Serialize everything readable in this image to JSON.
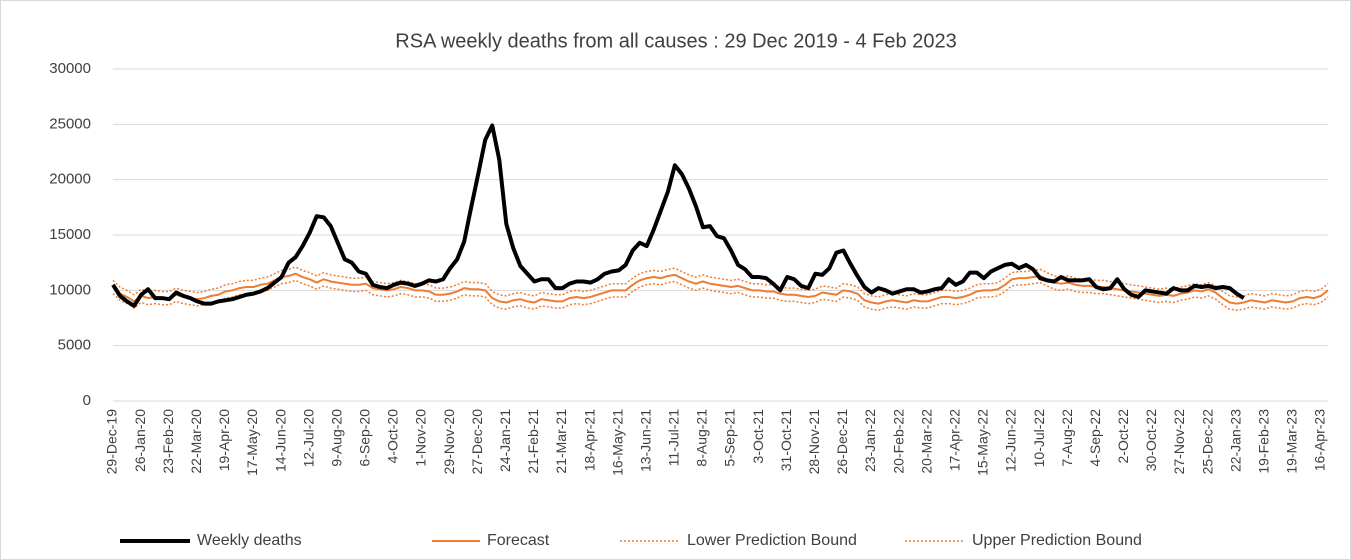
{
  "chart_data": {
    "type": "line",
    "title": "RSA weekly deaths from all causes : 29 Dec 2019 - 4 Feb 2023",
    "categories": [
      "29-Dec-19",
      null,
      null,
      null,
      "26-Jan-20",
      null,
      null,
      null,
      "23-Feb-20",
      null,
      null,
      null,
      "22-Mar-20",
      null,
      null,
      null,
      "19-Apr-20",
      null,
      null,
      null,
      "17-May-20",
      null,
      null,
      null,
      "14-Jun-20",
      null,
      null,
      null,
      "12-Jul-20",
      null,
      null,
      null,
      "9-Aug-20",
      null,
      null,
      null,
      "6-Sep-20",
      null,
      null,
      null,
      "4-Oct-20",
      null,
      null,
      null,
      "1-Nov-20",
      null,
      null,
      null,
      "29-Nov-20",
      null,
      null,
      null,
      "27-Dec-20",
      null,
      null,
      null,
      "24-Jan-21",
      null,
      null,
      null,
      "21-Feb-21",
      null,
      null,
      null,
      "21-Mar-21",
      null,
      null,
      null,
      "18-Apr-21",
      null,
      null,
      null,
      "16-May-21",
      null,
      null,
      null,
      "13-Jun-21",
      null,
      null,
      null,
      "11-Jul-21",
      null,
      null,
      null,
      "8-Aug-21",
      null,
      null,
      null,
      "5-Sep-21",
      null,
      null,
      null,
      "3-Oct-21",
      null,
      null,
      null,
      "31-Oct-21",
      null,
      null,
      null,
      "28-Nov-21",
      null,
      null,
      null,
      "26-Dec-21",
      null,
      null,
      null,
      "23-Jan-22",
      null,
      null,
      null,
      "20-Feb-22",
      null,
      null,
      null,
      "20-Mar-22",
      null,
      null,
      null,
      "17-Apr-22",
      null,
      null,
      null,
      "15-May-22",
      null,
      null,
      null,
      "12-Jun-22",
      null,
      null,
      null,
      "10-Jul-22",
      null,
      null,
      null,
      "7-Aug-22",
      null,
      null,
      null,
      "4-Sep-22",
      null,
      null,
      null,
      "2-Oct-22",
      null,
      null,
      null,
      "30-Oct-22",
      null,
      null,
      null,
      "27-Nov-22",
      null,
      null,
      null,
      "25-Dec-22",
      null,
      null,
      null,
      "22-Jan-23",
      null,
      null,
      null,
      "19-Feb-23",
      null,
      null,
      null,
      "19-Mar-23",
      null,
      null,
      null,
      "16-Apr-23",
      null
    ],
    "series": [
      {
        "name": "Weekly deaths",
        "color": "#000000",
        "width": 4,
        "style": "solid",
        "values": [
          10500,
          9500,
          9000,
          8600,
          9600,
          10100,
          9300,
          9300,
          9200,
          9800,
          9500,
          9300,
          9000,
          8800,
          8800,
          9000,
          9100,
          9200,
          9400,
          9600,
          9700,
          9900,
          10200,
          10700,
          11200,
          12500,
          13000,
          14000,
          15200,
          16700,
          16600,
          15800,
          14300,
          12800,
          12500,
          11700,
          11500,
          10500,
          10300,
          10200,
          10500,
          10700,
          10600,
          10400,
          10600,
          10900,
          10800,
          11000,
          12000,
          12800,
          14400,
          17500,
          20500,
          23600,
          24900,
          21800,
          16000,
          13800,
          12200,
          11500,
          10800,
          11000,
          11000,
          10200,
          10200,
          10600,
          10800,
          10800,
          10700,
          11000,
          11500,
          11700,
          11800,
          12300,
          13600,
          14300,
          14000,
          15500,
          17200,
          18900,
          21300,
          20500,
          19200,
          17600,
          15700,
          15800,
          14900,
          14700,
          13600,
          12300,
          11900,
          11200,
          11200,
          11100,
          10600,
          10000,
          11200,
          11000,
          10400,
          10200,
          11500,
          11400,
          12000,
          13400,
          13600,
          12400,
          11300,
          10300,
          9800,
          10200,
          10000,
          9700,
          9900,
          10100,
          10100,
          9800,
          9900,
          10100,
          10200,
          11000,
          10500,
          10800,
          11600,
          11600,
          11100,
          11700,
          12000,
          12300,
          12400,
          12000,
          12300,
          11900,
          11100,
          10900,
          10800,
          11200,
          10900,
          10900,
          10900,
          11000,
          10300,
          10100,
          10200,
          11000,
          10100,
          9600,
          9400,
          10000,
          9900,
          9800,
          9700,
          10200,
          10000,
          10000,
          10400,
          10300,
          10400,
          10200,
          10300,
          10200,
          9700,
          9300,
          null,
          null,
          null,
          null,
          null,
          null,
          null,
          null,
          null,
          null,
          null,
          null
        ]
      },
      {
        "name": "Forecast",
        "color": "#ED7D31",
        "width": 2,
        "style": "solid",
        "values": [
          10300,
          9700,
          9400,
          9000,
          9500,
          9300,
          9400,
          9300,
          9300,
          9600,
          9400,
          9300,
          9200,
          9300,
          9500,
          9600,
          9900,
          10000,
          10200,
          10300,
          10300,
          10500,
          10600,
          10900,
          11200,
          11300,
          11500,
          11200,
          11000,
          10700,
          11000,
          10800,
          10700,
          10600,
          10500,
          10500,
          10600,
          10200,
          10100,
          10000,
          10100,
          10300,
          10200,
          10000,
          10000,
          9900,
          9600,
          9600,
          9700,
          9900,
          10200,
          10100,
          10100,
          10000,
          9300,
          9000,
          8900,
          9100,
          9200,
          9000,
          8900,
          9200,
          9100,
          9000,
          9000,
          9300,
          9400,
          9300,
          9400,
          9600,
          9800,
          10000,
          10000,
          10000,
          10500,
          10900,
          11100,
          11200,
          11100,
          11300,
          11400,
          11100,
          10800,
          10600,
          10800,
          10600,
          10500,
          10400,
          10300,
          10400,
          10200,
          10000,
          10000,
          9900,
          9900,
          9700,
          9600,
          9600,
          9500,
          9400,
          9500,
          9800,
          9700,
          9600,
          10000,
          9900,
          9700,
          9100,
          8900,
          8800,
          9000,
          9100,
          9000,
          8900,
          9100,
          9000,
          9000,
          9200,
          9400,
          9400,
          9300,
          9400,
          9600,
          9900,
          10000,
          10000,
          10100,
          10500,
          11000,
          11100,
          11100,
          11200,
          11300,
          11000,
          10700,
          10600,
          10700,
          10500,
          10400,
          10400,
          10300,
          10300,
          10200,
          10100,
          10000,
          9900,
          9800,
          9700,
          9600,
          9500,
          9600,
          9500,
          9700,
          9800,
          10000,
          9900,
          10100,
          9800,
          9300,
          8900,
          8800,
          8900,
          9100,
          9000,
          8900,
          9100,
          9000,
          8900,
          9000,
          9300,
          9400,
          9300,
          9500,
          10000
        ]
      },
      {
        "name": "Lower Prediction Bound",
        "color": "#ED7D31",
        "width": 1.5,
        "style": "dotted",
        "values": [
          9700,
          9100,
          8800,
          8400,
          8900,
          8700,
          8800,
          8700,
          8700,
          9000,
          8800,
          8700,
          8600,
          8700,
          8900,
          9000,
          9300,
          9400,
          9600,
          9700,
          9700,
          9900,
          10000,
          10300,
          10600,
          10700,
          10900,
          10600,
          10400,
          10100,
          10400,
          10200,
          10100,
          10000,
          9900,
          9900,
          10000,
          9600,
          9500,
          9400,
          9500,
          9700,
          9600,
          9400,
          9400,
          9300,
          9000,
          9000,
          9100,
          9300,
          9600,
          9500,
          9500,
          9400,
          8700,
          8400,
          8300,
          8500,
          8600,
          8400,
          8300,
          8600,
          8500,
          8400,
          8400,
          8700,
          8800,
          8700,
          8800,
          9000,
          9200,
          9400,
          9400,
          9400,
          9900,
          10300,
          10500,
          10600,
          10500,
          10700,
          10800,
          10500,
          10200,
          10000,
          10200,
          10000,
          9900,
          9800,
          9700,
          9800,
          9600,
          9400,
          9400,
          9300,
          9300,
          9100,
          9000,
          9000,
          8900,
          8800,
          8900,
          9200,
          9100,
          9000,
          9400,
          9300,
          9100,
          8500,
          8300,
          8200,
          8400,
          8500,
          8400,
          8300,
          8500,
          8400,
          8400,
          8600,
          8800,
          8800,
          8700,
          8800,
          9000,
          9300,
          9400,
          9400,
          9500,
          9900,
          10400,
          10500,
          10500,
          10600,
          10700,
          10400,
          10100,
          10000,
          10100,
          9900,
          9800,
          9800,
          9700,
          9700,
          9600,
          9500,
          9400,
          9300,
          9200,
          9100,
          9000,
          8900,
          9000,
          8900,
          9100,
          9200,
          9400,
          9300,
          9500,
          9200,
          8700,
          8300,
          8200,
          8300,
          8500,
          8400,
          8300,
          8500,
          8400,
          8300,
          8400,
          8700,
          8800,
          8700,
          8900,
          9400
        ]
      },
      {
        "name": "Upper Prediction Bound",
        "color": "#ED7D31",
        "width": 1.5,
        "style": "dotted",
        "values": [
          10900,
          10300,
          10000,
          9600,
          10100,
          9900,
          10000,
          9900,
          9900,
          10200,
          10000,
          9900,
          9800,
          9900,
          10100,
          10200,
          10500,
          10600,
          10800,
          10900,
          10900,
          11100,
          11200,
          11500,
          11800,
          11900,
          12100,
          11800,
          11600,
          11300,
          11600,
          11400,
          11300,
          11200,
          11100,
          11100,
          11200,
          10800,
          10700,
          10600,
          10700,
          10900,
          10800,
          10600,
          10600,
          10500,
          10200,
          10200,
          10300,
          10500,
          10800,
          10700,
          10700,
          10600,
          9900,
          9600,
          9500,
          9700,
          9800,
          9600,
          9500,
          9800,
          9700,
          9600,
          9600,
          9900,
          10000,
          9900,
          10000,
          10200,
          10400,
          10600,
          10600,
          10600,
          11100,
          11500,
          11700,
          11800,
          11700,
          11900,
          12000,
          11700,
          11400,
          11200,
          11400,
          11200,
          11100,
          11000,
          10900,
          11000,
          10800,
          10600,
          10600,
          10500,
          10500,
          10300,
          10200,
          10200,
          10100,
          10000,
          10100,
          10400,
          10300,
          10200,
          10600,
          10500,
          10300,
          9700,
          9500,
          9400,
          9600,
          9700,
          9600,
          9500,
          9700,
          9600,
          9600,
          9800,
          10000,
          10000,
          9900,
          10000,
          10200,
          10500,
          10600,
          10600,
          10700,
          11100,
          11600,
          11700,
          11700,
          11800,
          11900,
          11600,
          11300,
          11200,
          11300,
          11100,
          11000,
          11000,
          10900,
          10900,
          10800,
          10700,
          10600,
          10500,
          10400,
          10300,
          10200,
          10100,
          10200,
          10100,
          10300,
          10400,
          10600,
          10500,
          10700,
          10400,
          9900,
          9500,
          9400,
          9500,
          9700,
          9600,
          9500,
          9700,
          9600,
          9500,
          9600,
          9900,
          10000,
          9900,
          10100,
          10600
        ]
      }
    ],
    "ylim": [
      0,
      30000
    ],
    "yticks": [
      0,
      5000,
      10000,
      15000,
      20000,
      25000,
      30000
    ],
    "grid": true,
    "grid_color": "#d9d9d9",
    "legend": "bottom"
  }
}
